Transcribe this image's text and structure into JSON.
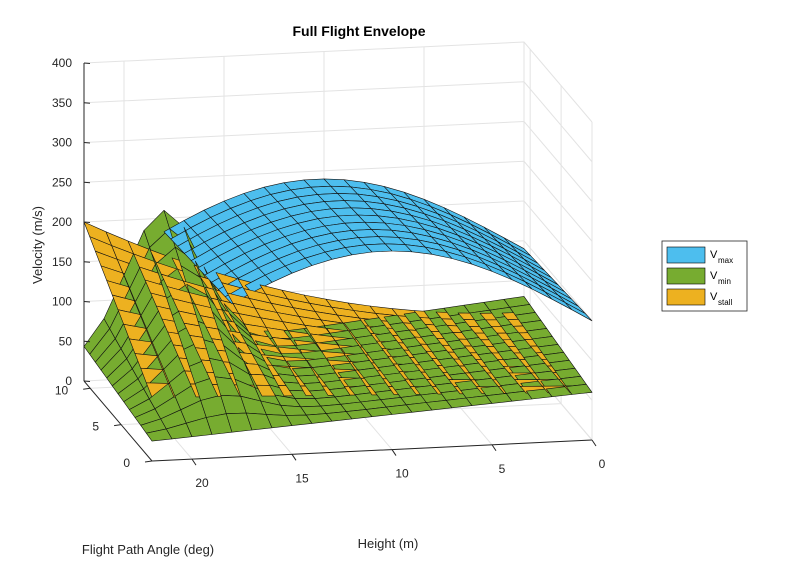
{
  "chart_data": {
    "type": "surface3d",
    "title": "Full Flight Envelope",
    "xlabel": "Height (m)",
    "ylabel": "Flight Path Angle (deg)",
    "zlabel": "Velocity (m/s)",
    "x_ticks": [
      "0",
      "5",
      "10",
      "15",
      "20"
    ],
    "y_ticks": [
      "0",
      "5",
      "10"
    ],
    "z_ticks": [
      "0",
      "50",
      "100",
      "150",
      "200",
      "250",
      "300",
      "350",
      "400"
    ],
    "xlim": [
      0,
      22
    ],
    "ylim": [
      0,
      11
    ],
    "zlim": [
      0,
      400
    ],
    "grid": true,
    "legend_position": "right",
    "series": [
      {
        "name": "V",
        "subscript": "max",
        "color": "#4DBEEE",
        "description_values": {
          "peak": 250,
          "at_height_0": 150,
          "at_height_10": 180
        }
      },
      {
        "name": "V",
        "subscript": "min",
        "color": "#77AC30",
        "description_values": {
          "peak": 175,
          "at_height_0": 60,
          "at_height_22_gamma_0": 20
        }
      },
      {
        "name": "V",
        "subscript": "stall",
        "color": "#EDB120",
        "description_values": {
          "at_height_22_gamma_11": 200,
          "at_height_0": 60
        }
      }
    ]
  }
}
